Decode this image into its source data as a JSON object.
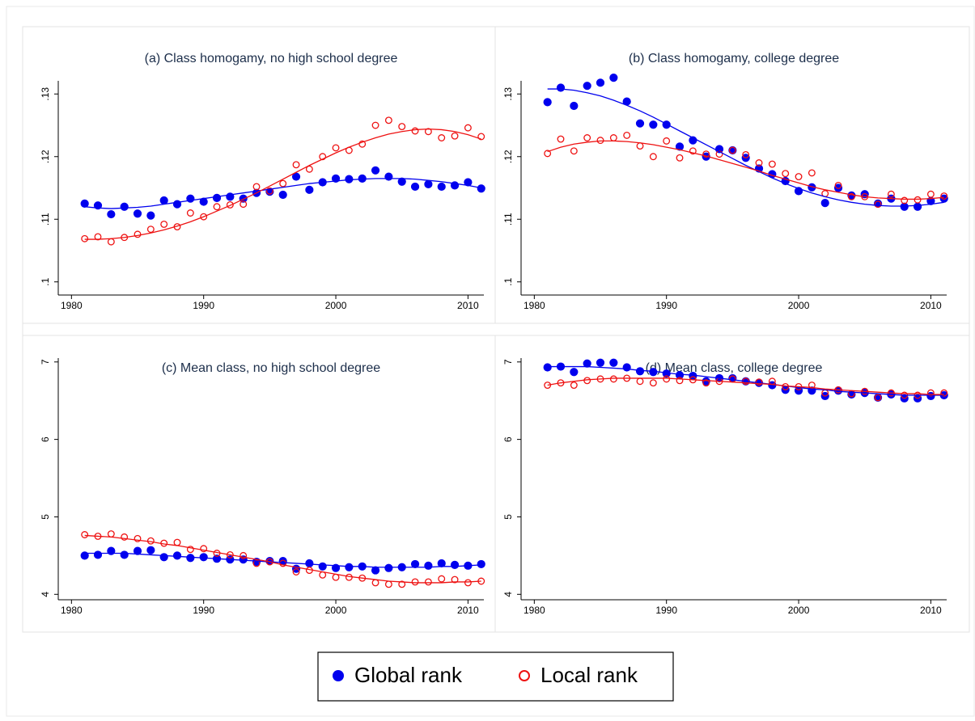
{
  "chart_data": [
    {
      "type": "scatter",
      "title": "(a) Class homogamy, no high school degree",
      "x": [
        1981,
        1982,
        1983,
        1984,
        1985,
        1986,
        1987,
        1988,
        1989,
        1990,
        1991,
        1992,
        1993,
        1994,
        1995,
        1996,
        1997,
        1998,
        1999,
        2000,
        2001,
        2002,
        2003,
        2004,
        2005,
        2006,
        2007,
        2008,
        2009,
        2010,
        2011
      ],
      "xlim": [
        1979,
        2011.2
      ],
      "xticks": [
        1980,
        1990,
        2000,
        2010
      ],
      "ylim": [
        0.0979,
        0.1321
      ],
      "yticks": [
        {
          "value": 0.1,
          "label": ".1"
        },
        {
          "value": 0.11,
          "label": ".11"
        },
        {
          "value": 0.12,
          "label": ".12"
        },
        {
          "value": 0.13,
          "label": ".13"
        }
      ],
      "series": [
        {
          "name": "Global rank",
          "color": "#0000ee",
          "marker": "filled",
          "values": [
            0.1125,
            0.1122,
            0.1108,
            0.112,
            0.1109,
            0.1106,
            0.113,
            0.1124,
            0.1133,
            0.1128,
            0.1134,
            0.1136,
            0.1133,
            0.1142,
            0.1144,
            0.1139,
            0.1168,
            0.1147,
            0.1159,
            0.1165,
            0.1164,
            0.1165,
            0.1178,
            0.1168,
            0.116,
            0.1152,
            0.1156,
            0.1152,
            0.1154,
            0.1159,
            0.1149
          ],
          "fit": [
            0.112,
            0.1118,
            0.1117,
            0.1118,
            0.1119,
            0.1121,
            0.1124,
            0.1127,
            0.113,
            0.1133,
            0.1136,
            0.1139,
            0.1142,
            0.1145,
            0.1148,
            0.1151,
            0.1154,
            0.1157,
            0.1159,
            0.1161,
            0.1163,
            0.1164,
            0.1165,
            0.1165,
            0.1165,
            0.1164,
            0.1162,
            0.116,
            0.1157,
            0.1154,
            0.115
          ]
        },
        {
          "name": "Local rank",
          "color": "#ee1111",
          "marker": "hollow",
          "values": [
            0.1069,
            0.1072,
            0.1064,
            0.1071,
            0.1076,
            0.1084,
            0.1092,
            0.1088,
            0.111,
            0.1104,
            0.112,
            0.1123,
            0.1124,
            0.1152,
            0.1145,
            0.1157,
            0.1187,
            0.118,
            0.12,
            0.1214,
            0.121,
            0.122,
            0.125,
            0.1258,
            0.1248,
            0.1241,
            0.124,
            0.123,
            0.1233,
            0.1246,
            0.1232
          ],
          "fit": [
            0.1068,
            0.1068,
            0.1069,
            0.1071,
            0.1074,
            0.1078,
            0.1083,
            0.1089,
            0.1096,
            0.1104,
            0.1113,
            0.1122,
            0.1132,
            0.1142,
            0.1153,
            0.1164,
            0.1175,
            0.1186,
            0.1196,
            0.1206,
            0.1215,
            0.1223,
            0.123,
            0.1236,
            0.124,
            0.1243,
            0.1244,
            0.1243,
            0.124,
            0.1235,
            0.1228
          ]
        }
      ]
    },
    {
      "type": "scatter",
      "title": "(b) Class homogamy, college degree",
      "x": [
        1981,
        1982,
        1983,
        1984,
        1985,
        1986,
        1987,
        1988,
        1989,
        1990,
        1991,
        1992,
        1993,
        1994,
        1995,
        1996,
        1997,
        1998,
        1999,
        2000,
        2001,
        2002,
        2003,
        2004,
        2005,
        2006,
        2007,
        2008,
        2009,
        2010,
        2011
      ],
      "xlim": [
        1979,
        2011.2
      ],
      "xticks": [
        1980,
        1990,
        2000,
        2010
      ],
      "ylim": [
        0.0979,
        0.1321
      ],
      "yticks": [
        {
          "value": 0.1,
          "label": ".1"
        },
        {
          "value": 0.11,
          "label": ".11"
        },
        {
          "value": 0.12,
          "label": ".12"
        },
        {
          "value": 0.13,
          "label": ".13"
        }
      ],
      "series": [
        {
          "color": "#0000ee",
          "marker": "filled",
          "values": [
            0.1287,
            0.131,
            0.1281,
            0.1313,
            0.1318,
            0.1326,
            0.1288,
            0.1253,
            0.1251,
            0.1251,
            0.1216,
            0.1226,
            0.12,
            0.1212,
            0.121,
            0.1198,
            0.1181,
            0.1172,
            0.1161,
            0.1145,
            0.1151,
            0.1126,
            0.115,
            0.1138,
            0.114,
            0.1125,
            0.1133,
            0.112,
            0.112,
            0.1129,
            0.1133
          ],
          "fit": [
            0.1308,
            0.1308,
            0.1306,
            0.1302,
            0.1297,
            0.129,
            0.1282,
            0.1273,
            0.1263,
            0.1252,
            0.1241,
            0.123,
            0.1219,
            0.1208,
            0.1197,
            0.1186,
            0.1176,
            0.1166,
            0.1157,
            0.1149,
            0.1142,
            0.1136,
            0.1131,
            0.1127,
            0.1124,
            0.1122,
            0.1121,
            0.1121,
            0.1122,
            0.1124,
            0.1127
          ]
        },
        {
          "color": "#ee1111",
          "marker": "hollow",
          "values": [
            0.1205,
            0.1228,
            0.1209,
            0.123,
            0.1226,
            0.123,
            0.1234,
            0.1217,
            0.12,
            0.1225,
            0.1198,
            0.1209,
            0.1204,
            0.1204,
            0.121,
            0.1203,
            0.119,
            0.1188,
            0.1173,
            0.1168,
            0.1174,
            0.1141,
            0.1154,
            0.1136,
            0.1136,
            0.1124,
            0.114,
            0.113,
            0.1131,
            0.114,
            0.1137
          ],
          "fit": [
            0.1208,
            0.1215,
            0.122,
            0.1223,
            0.1225,
            0.1225,
            0.1224,
            0.1222,
            0.1219,
            0.1215,
            0.1211,
            0.1206,
            0.1201,
            0.1195,
            0.1189,
            0.1183,
            0.1177,
            0.117,
            0.1164,
            0.1158,
            0.1152,
            0.1147,
            0.1143,
            0.1139,
            0.1136,
            0.1134,
            0.1133,
            0.1132,
            0.1132,
            0.1133,
            0.1135
          ]
        }
      ]
    },
    {
      "type": "scatter",
      "title": "(c) Mean class, no high school degree",
      "x": [
        1981,
        1982,
        1983,
        1984,
        1985,
        1986,
        1987,
        1988,
        1989,
        1990,
        1991,
        1992,
        1993,
        1994,
        1995,
        1996,
        1997,
        1998,
        1999,
        2000,
        2001,
        2002,
        2003,
        2004,
        2005,
        2006,
        2007,
        2008,
        2009,
        2010,
        2011
      ],
      "xlim": [
        1979,
        2011.2
      ],
      "xticks": [
        1980,
        1990,
        2000,
        2010
      ],
      "ylim": [
        3.93,
        7.05
      ],
      "yticks": [
        4,
        5,
        6,
        7
      ],
      "series": [
        {
          "color": "#0000ee",
          "marker": "filled",
          "values": [
            4.5,
            4.51,
            4.56,
            4.51,
            4.56,
            4.57,
            4.48,
            4.5,
            4.47,
            4.48,
            4.46,
            4.45,
            4.45,
            4.42,
            4.43,
            4.43,
            4.33,
            4.4,
            4.36,
            4.34,
            4.35,
            4.36,
            4.31,
            4.34,
            4.35,
            4.39,
            4.37,
            4.4,
            4.38,
            4.37,
            4.39
          ],
          "fit": [
            4.53,
            4.53,
            4.53,
            4.53,
            4.52,
            4.51,
            4.5,
            4.49,
            4.48,
            4.47,
            4.46,
            4.45,
            4.44,
            4.43,
            4.42,
            4.41,
            4.4,
            4.39,
            4.38,
            4.37,
            4.36,
            4.36,
            4.35,
            4.35,
            4.35,
            4.35,
            4.35,
            4.36,
            4.36,
            4.37,
            4.38
          ]
        },
        {
          "color": "#ee1111",
          "marker": "hollow",
          "values": [
            4.77,
            4.75,
            4.78,
            4.74,
            4.72,
            4.69,
            4.66,
            4.67,
            4.58,
            4.59,
            4.53,
            4.51,
            4.5,
            4.4,
            4.42,
            4.4,
            4.29,
            4.31,
            4.25,
            4.22,
            4.22,
            4.21,
            4.15,
            4.13,
            4.13,
            4.16,
            4.16,
            4.2,
            4.19,
            4.15,
            4.17
          ],
          "fit": [
            4.76,
            4.75,
            4.74,
            4.72,
            4.7,
            4.68,
            4.65,
            4.63,
            4.6,
            4.57,
            4.54,
            4.51,
            4.48,
            4.45,
            4.42,
            4.38,
            4.35,
            4.32,
            4.29,
            4.26,
            4.23,
            4.21,
            4.19,
            4.17,
            4.16,
            4.15,
            4.15,
            4.15,
            4.16,
            4.16,
            4.17
          ]
        }
      ]
    },
    {
      "type": "scatter",
      "title": "(d) Mean class, college degree",
      "x": [
        1981,
        1982,
        1983,
        1984,
        1985,
        1986,
        1987,
        1988,
        1989,
        1990,
        1991,
        1992,
        1993,
        1994,
        1995,
        1996,
        1997,
        1998,
        1999,
        2000,
        2001,
        2002,
        2003,
        2004,
        2005,
        2006,
        2007,
        2008,
        2009,
        2010,
        2011
      ],
      "xlim": [
        1979,
        2011.2
      ],
      "xticks": [
        1980,
        1990,
        2000,
        2010
      ],
      "ylim": [
        3.93,
        7.05
      ],
      "yticks": [
        4,
        5,
        6,
        7
      ],
      "series": [
        {
          "color": "#0000ee",
          "marker": "filled",
          "values": [
            6.93,
            6.94,
            6.87,
            6.98,
            6.99,
            6.99,
            6.93,
            6.88,
            6.87,
            6.85,
            6.83,
            6.82,
            6.75,
            6.79,
            6.79,
            6.75,
            6.73,
            6.7,
            6.64,
            6.63,
            6.63,
            6.56,
            6.63,
            6.58,
            6.6,
            6.54,
            6.58,
            6.53,
            6.53,
            6.56,
            6.57
          ],
          "fit": [
            6.94,
            6.94,
            6.94,
            6.94,
            6.93,
            6.92,
            6.91,
            6.89,
            6.88,
            6.86,
            6.84,
            6.83,
            6.81,
            6.79,
            6.77,
            6.75,
            6.73,
            6.71,
            6.69,
            6.67,
            6.65,
            6.64,
            6.62,
            6.61,
            6.6,
            6.59,
            6.58,
            6.57,
            6.57,
            6.57,
            6.57
          ]
        },
        {
          "color": "#ee1111",
          "marker": "hollow",
          "values": [
            6.7,
            6.73,
            6.7,
            6.76,
            6.78,
            6.78,
            6.79,
            6.75,
            6.73,
            6.78,
            6.76,
            6.77,
            6.73,
            6.75,
            6.78,
            6.75,
            6.74,
            6.75,
            6.68,
            6.68,
            6.7,
            6.6,
            6.64,
            6.59,
            6.62,
            6.54,
            6.6,
            6.57,
            6.57,
            6.6,
            6.6
          ],
          "fit": [
            6.7,
            6.73,
            6.75,
            6.77,
            6.78,
            6.79,
            6.79,
            6.79,
            6.79,
            6.79,
            6.78,
            6.77,
            6.76,
            6.75,
            6.74,
            6.73,
            6.72,
            6.71,
            6.69,
            6.68,
            6.67,
            6.65,
            6.64,
            6.63,
            6.62,
            6.61,
            6.6,
            6.59,
            6.59,
            6.58,
            6.58
          ]
        }
      ]
    }
  ]
}
